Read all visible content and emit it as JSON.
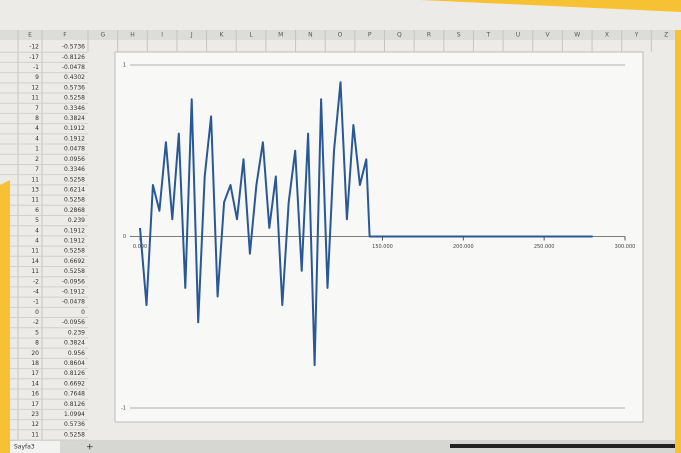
{
  "spreadsheet": {
    "column_headers": [
      "E",
      "F",
      "G",
      "H",
      "I",
      "J",
      "K",
      "L",
      "M",
      "N",
      "O",
      "P",
      "Q",
      "R",
      "S",
      "T",
      "U",
      "V",
      "W",
      "X",
      "Y",
      "Z"
    ],
    "rows": [
      [
        -12,
        -0.5736
      ],
      [
        -17,
        -0.8126
      ],
      [
        -1,
        -0.0478
      ],
      [
        9,
        0.4302
      ],
      [
        12,
        0.5736
      ],
      [
        11,
        0.5258
      ],
      [
        7,
        0.3346
      ],
      [
        8,
        0.3824
      ],
      [
        4,
        0.1912
      ],
      [
        4,
        0.1912
      ],
      [
        1,
        0.0478
      ],
      [
        2,
        0.0956
      ],
      [
        7,
        0.3346
      ],
      [
        11,
        0.5258
      ],
      [
        13,
        0.6214
      ],
      [
        11,
        0.5258
      ],
      [
        6,
        0.2868
      ],
      [
        5,
        0.239
      ],
      [
        4,
        0.1912
      ],
      [
        4,
        0.1912
      ],
      [
        11,
        0.5258
      ],
      [
        14,
        0.6692
      ],
      [
        11,
        0.5258
      ],
      [
        -2,
        -0.0956
      ],
      [
        -4,
        -0.1912
      ],
      [
        -1,
        -0.0478
      ],
      [
        0,
        0
      ],
      [
        -2,
        -0.0956
      ],
      [
        5,
        0.239
      ],
      [
        8,
        0.3824
      ],
      [
        20,
        0.956
      ],
      [
        18,
        0.8604
      ],
      [
        17,
        0.8126
      ],
      [
        14,
        0.6692
      ],
      [
        16,
        0.7648
      ],
      [
        17,
        0.8126
      ],
      [
        23,
        1.0994
      ],
      [
        12,
        0.5736
      ],
      [
        11,
        0.5258
      ]
    ],
    "sheet_tab": "Sayfa3",
    "add_sheet": "+"
  },
  "chart_data": {
    "type": "line",
    "x": [
      0,
      4000,
      8000,
      12000,
      16000,
      20000,
      24000,
      28000,
      32000,
      36000,
      40000,
      44000,
      48000,
      52000,
      56000,
      60000,
      64000,
      68000,
      72000,
      76000,
      80000,
      84000,
      88000,
      92000,
      96000,
      100000,
      104000,
      108000,
      112000,
      116000,
      120000,
      124000,
      128000,
      132000,
      136000,
      140000,
      142000,
      280000
    ],
    "values": [
      0.05,
      -0.4,
      0.3,
      0.15,
      0.55,
      0.1,
      0.6,
      -0.3,
      0.8,
      -0.5,
      0.35,
      0.7,
      -0.35,
      0.2,
      0.3,
      0.1,
      0.45,
      -0.1,
      0.3,
      0.55,
      0.05,
      0.35,
      -0.4,
      0.2,
      0.5,
      -0.2,
      0.6,
      -0.75,
      0.8,
      -0.3,
      0.5,
      0.9,
      0.1,
      0.65,
      0.3,
      0.45,
      0,
      0
    ],
    "color": "#2a5896",
    "xlim": [
      0,
      300000
    ],
    "xticks": [
      {
        "value": 0,
        "label": "0.000"
      },
      {
        "value": 150000,
        "label": "150.000"
      },
      {
        "value": 200000,
        "label": "200.000"
      },
      {
        "value": 250000,
        "label": "250.000"
      },
      {
        "value": 300000,
        "label": "300.000"
      }
    ],
    "ylim": [
      -1,
      1
    ],
    "yticks": [
      -1,
      0,
      1
    ]
  }
}
